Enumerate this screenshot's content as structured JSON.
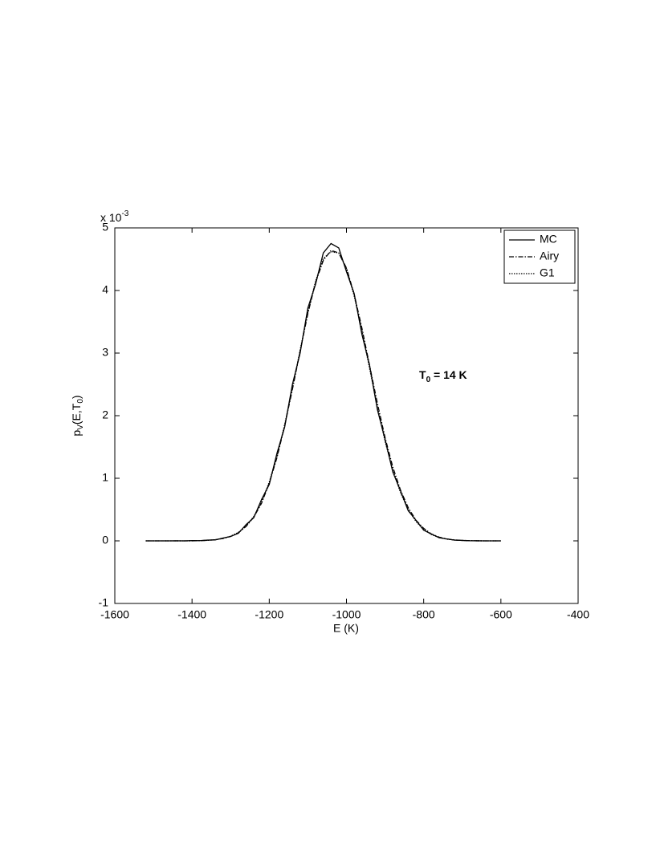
{
  "chart_data": {
    "type": "line",
    "y_scale": {
      "base": "x 10",
      "exponent": "-3"
    },
    "x_label": "E  (K)",
    "y_label": {
      "base": "p",
      "sub": "V",
      "middle": "(E,T",
      "sub2": "0",
      "end": ")"
    },
    "annotation": {
      "base": "T",
      "sub": "0",
      "rest": " = 14 K"
    },
    "x": [
      -1520,
      -1500,
      -1480,
      -1460,
      -1440,
      -1420,
      -1400,
      -1380,
      -1360,
      -1340,
      -1320,
      -1300,
      -1280,
      -1260,
      -1240,
      -1220,
      -1200,
      -1180,
      -1160,
      -1140,
      -1120,
      -1100,
      -1080,
      -1060,
      -1040,
      -1020,
      -1000,
      -980,
      -960,
      -940,
      -920,
      -900,
      -880,
      -860,
      -840,
      -820,
      -800,
      -780,
      -760,
      -740,
      -720,
      -700,
      -680,
      -660,
      -640,
      -620,
      -600
    ],
    "series": [
      {
        "name": "MC",
        "color": "#000000",
        "style": "solid",
        "values": [
          0,
          0,
          0,
          0,
          0.002,
          0,
          0.004,
          0.003,
          0.012,
          0.015,
          0.045,
          0.07,
          0.12,
          0.26,
          0.37,
          0.66,
          0.9,
          1.4,
          1.82,
          2.5,
          3.0,
          3.72,
          4.1,
          4.6,
          4.75,
          4.68,
          4.3,
          3.95,
          3.3,
          2.8,
          2.1,
          1.62,
          1.1,
          0.8,
          0.48,
          0.33,
          0.17,
          0.11,
          0.05,
          0.03,
          0.012,
          0.007,
          0.002,
          0.001,
          0,
          0,
          0
        ]
      },
      {
        "name": "Airy",
        "color": "#000000",
        "style": "dashdot",
        "values": [
          0,
          0,
          0,
          0,
          0,
          0,
          0.001,
          0.003,
          0.008,
          0.018,
          0.037,
          0.07,
          0.13,
          0.23,
          0.38,
          0.6,
          0.92,
          1.33,
          1.84,
          2.42,
          3.03,
          3.63,
          4.13,
          4.48,
          4.64,
          4.6,
          4.36,
          3.94,
          3.4,
          2.8,
          2.2,
          1.65,
          1.18,
          0.81,
          0.53,
          0.33,
          0.2,
          0.11,
          0.06,
          0.03,
          0.015,
          0.007,
          0.003,
          0.001,
          0,
          0,
          0
        ]
      },
      {
        "name": "G1",
        "color": "#000000",
        "style": "dotted",
        "values": [
          0,
          0,
          0,
          0,
          0,
          0,
          0.001,
          0.003,
          0.008,
          0.019,
          0.039,
          0.074,
          0.135,
          0.235,
          0.391,
          0.62,
          0.94,
          1.35,
          1.86,
          2.44,
          3.05,
          3.65,
          4.15,
          4.51,
          4.62,
          4.6,
          4.35,
          3.91,
          3.36,
          2.75,
          2.14,
          1.59,
          1.13,
          0.77,
          0.5,
          0.31,
          0.18,
          0.1,
          0.054,
          0.027,
          0.013,
          0.006,
          0.002,
          0.001,
          0,
          0,
          0
        ]
      }
    ],
    "xlim": [
      -1600,
      -400
    ],
    "xticks": [
      -1600,
      -1400,
      -1200,
      -1000,
      -800,
      -600,
      -400
    ],
    "ylim": [
      -1,
      5
    ],
    "yticks": [
      -1,
      0,
      1,
      2,
      3,
      4,
      5
    ],
    "legend": "upper right"
  }
}
